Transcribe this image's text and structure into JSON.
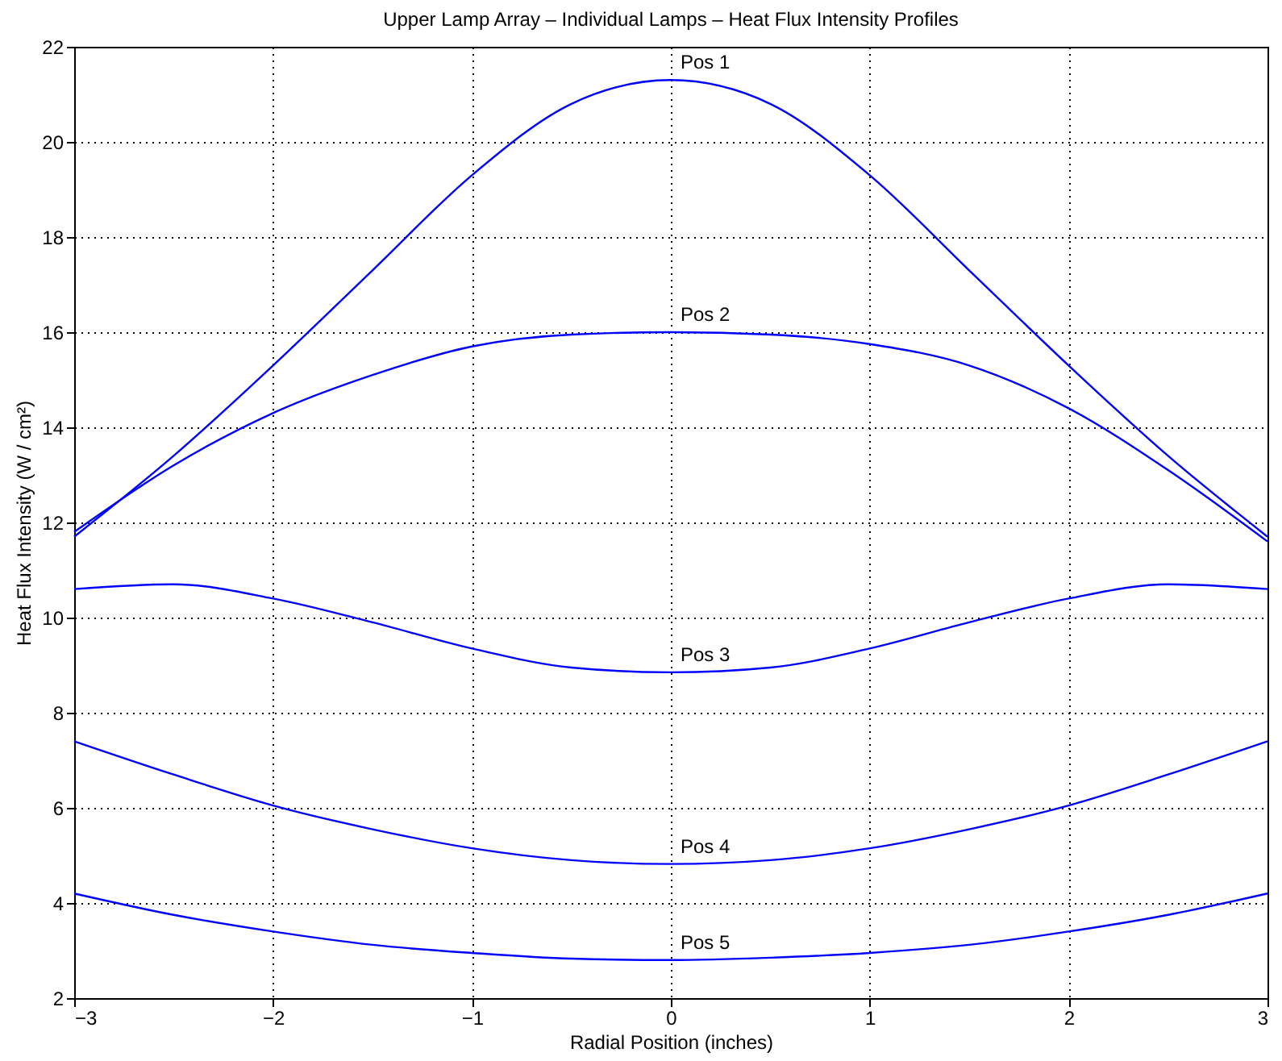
{
  "chart_data": {
    "type": "line",
    "title": "Upper Lamp Array – Individual Lamps – Heat Flux Intensity Profiles",
    "xlabel": "Radial Position (inches)",
    "ylabel": "Heat Flux Intensity (W / cm²)",
    "x": [
      -3,
      -2.5,
      -2,
      -1.5,
      -1,
      -0.5,
      0,
      0.5,
      1,
      1.5,
      2,
      2.5,
      3
    ],
    "series": [
      {
        "name": "Pos 1",
        "color": "#0000ff",
        "values": [
          11.7,
          13.4,
          15.3,
          17.3,
          19.3,
          20.8,
          21.3,
          20.8,
          19.3,
          17.3,
          15.3,
          13.4,
          11.7
        ]
      },
      {
        "name": "Pos 2",
        "color": "#0000ff",
        "values": [
          11.8,
          13.2,
          14.3,
          15.1,
          15.7,
          15.95,
          16.0,
          15.95,
          15.75,
          15.3,
          14.4,
          13.1,
          11.6
        ]
      },
      {
        "name": "Pos 3",
        "color": "#0000ff",
        "values": [
          10.6,
          10.7,
          10.4,
          9.9,
          9.35,
          8.95,
          8.85,
          8.95,
          9.35,
          9.9,
          10.4,
          10.7,
          10.6
        ]
      },
      {
        "name": "Pos 4",
        "color": "#0000ff",
        "values": [
          7.4,
          6.7,
          6.05,
          5.55,
          5.15,
          4.9,
          4.82,
          4.9,
          5.15,
          5.55,
          6.05,
          6.7,
          7.4
        ]
      },
      {
        "name": "Pos 5",
        "color": "#0000ff",
        "values": [
          4.2,
          3.75,
          3.4,
          3.12,
          2.95,
          2.83,
          2.8,
          2.85,
          2.95,
          3.12,
          3.4,
          3.75,
          4.2
        ]
      }
    ],
    "xlim": [
      -3,
      3
    ],
    "xticks": [
      -3,
      -2,
      -1,
      0,
      1,
      2,
      3
    ],
    "ylim": [
      2,
      22
    ],
    "yticks": [
      2,
      4,
      6,
      8,
      10,
      12,
      14,
      16,
      18,
      20,
      22
    ],
    "grid": true,
    "legend": false,
    "marker": "none",
    "line_style": "solid"
  }
}
